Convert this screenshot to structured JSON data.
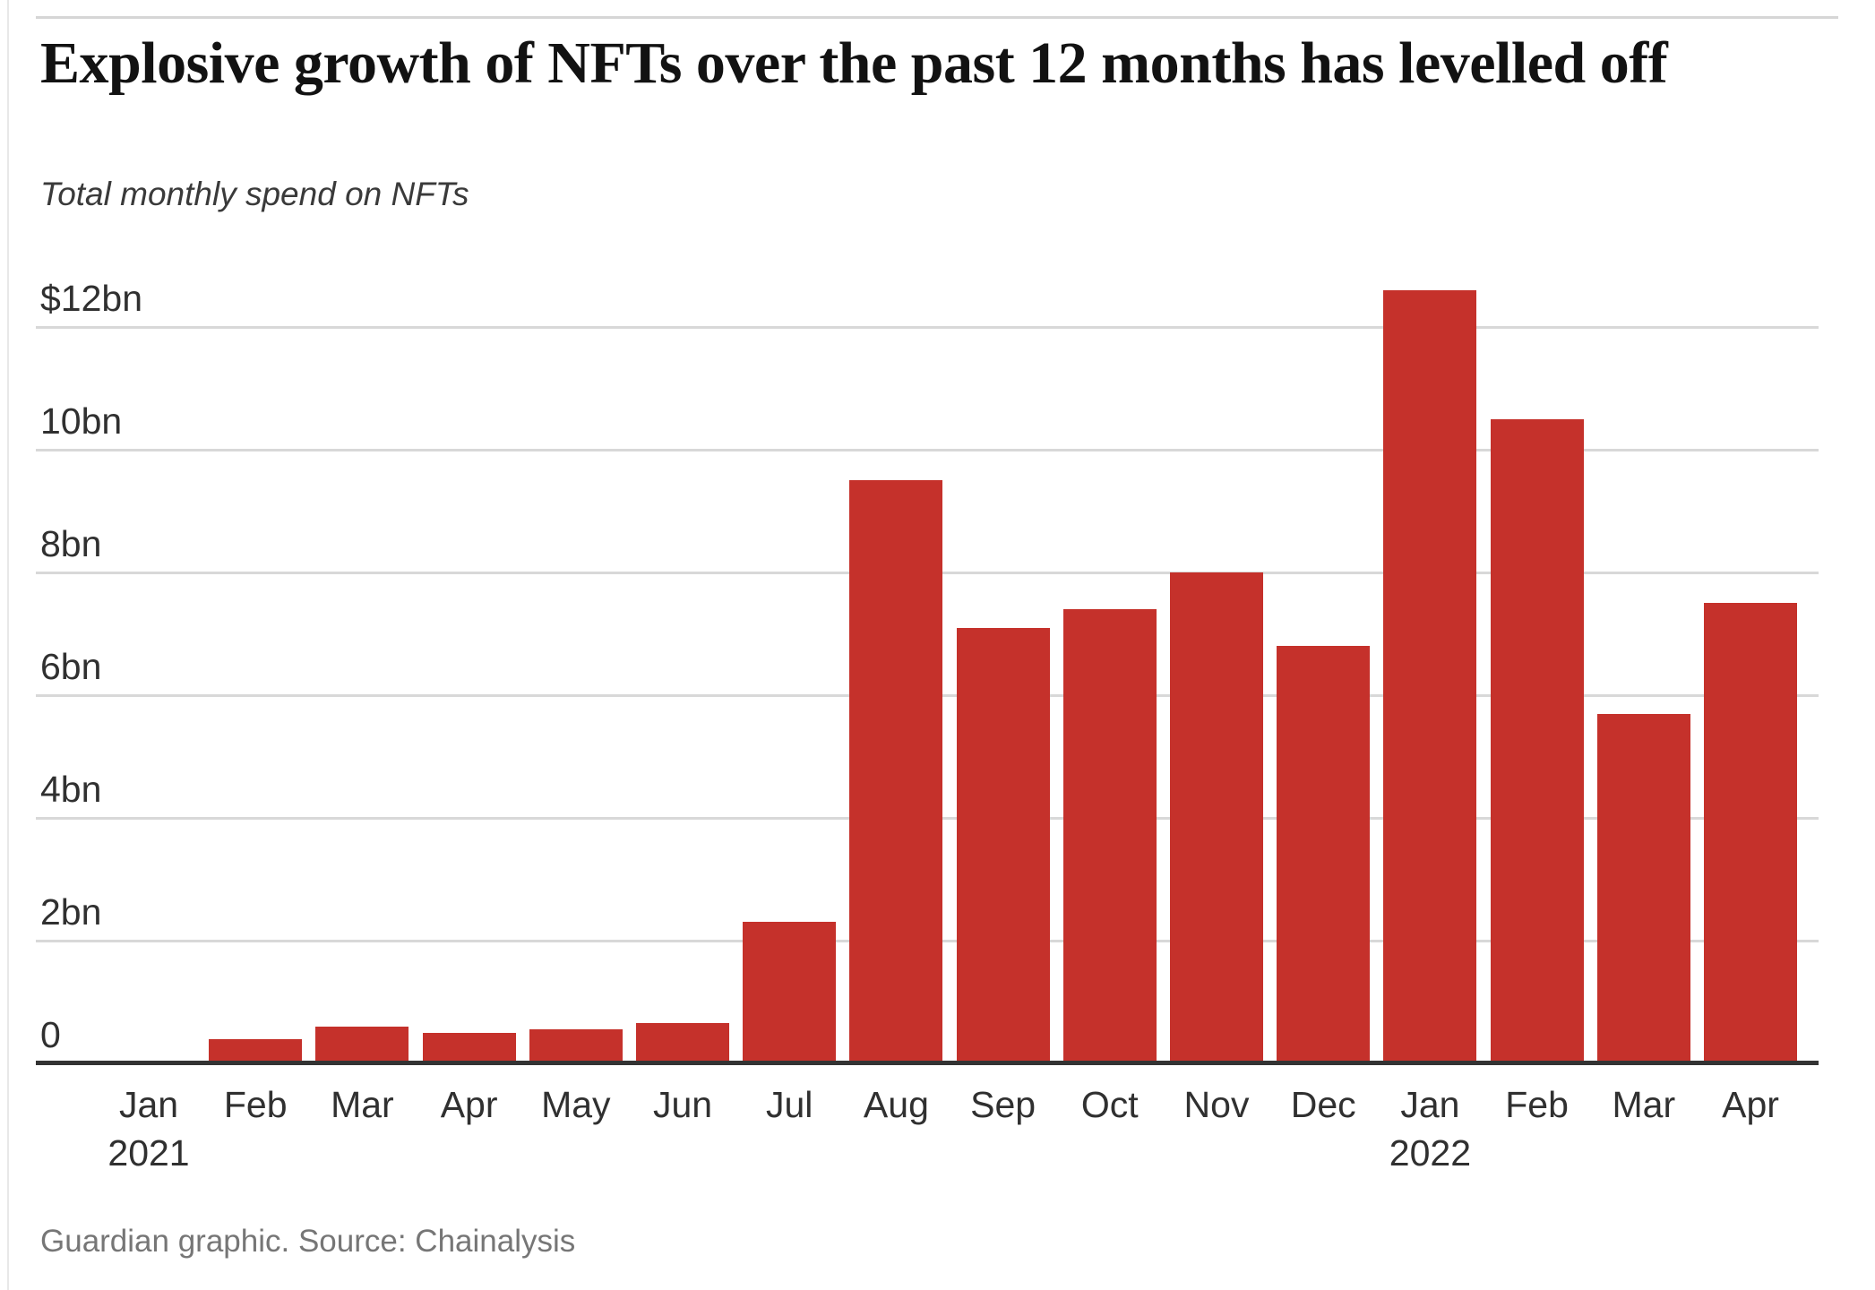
{
  "page": {
    "title": "Explosive growth of NFTs over the past 12 months has levelled off",
    "subtitle": "Total monthly spend on NFTs",
    "footer": "Guardian graphic. Source: Chainalysis"
  },
  "colors": {
    "bar": "#c5312b",
    "grid": "#d8d8d8",
    "axis": "#333333",
    "title": "#121212",
    "subtitle": "#3a3a3a",
    "tick": "#303030",
    "footer": "#767676",
    "top_rule": "#d6d6d6"
  },
  "chart_data": {
    "type": "bar",
    "title": "Explosive growth of NFTs over the past 12 months has levelled off",
    "subtitle": "Total monthly spend on NFTs",
    "unit": "USD billions",
    "categories": [
      "Jan",
      "Feb",
      "Mar",
      "Apr",
      "May",
      "Jun",
      "Jul",
      "Aug",
      "Sep",
      "Oct",
      "Nov",
      "Dec",
      "Jan",
      "Feb",
      "Mar",
      "Apr"
    ],
    "year_labels": [
      {
        "index": 0,
        "label": "2021"
      },
      {
        "index": 12,
        "label": "2022"
      }
    ],
    "values": [
      0,
      0.4,
      0.6,
      0.5,
      0.55,
      0.65,
      2.3,
      9.5,
      7.1,
      7.4,
      8.0,
      6.8,
      12.6,
      10.5,
      5.7,
      7.5
    ],
    "y_ticks": [
      {
        "value": 12,
        "label": "$12bn"
      },
      {
        "value": 10,
        "label": "10bn"
      },
      {
        "value": 8,
        "label": "8bn"
      },
      {
        "value": 6,
        "label": "6bn"
      },
      {
        "value": 4,
        "label": "4bn"
      },
      {
        "value": 2,
        "label": "2bn"
      },
      {
        "value": 0,
        "label": "0"
      }
    ],
    "xlabel": "",
    "ylabel": "",
    "ylim": [
      0,
      13
    ],
    "grid": true,
    "legend": false,
    "source": "Guardian graphic. Source: Chainalysis"
  }
}
